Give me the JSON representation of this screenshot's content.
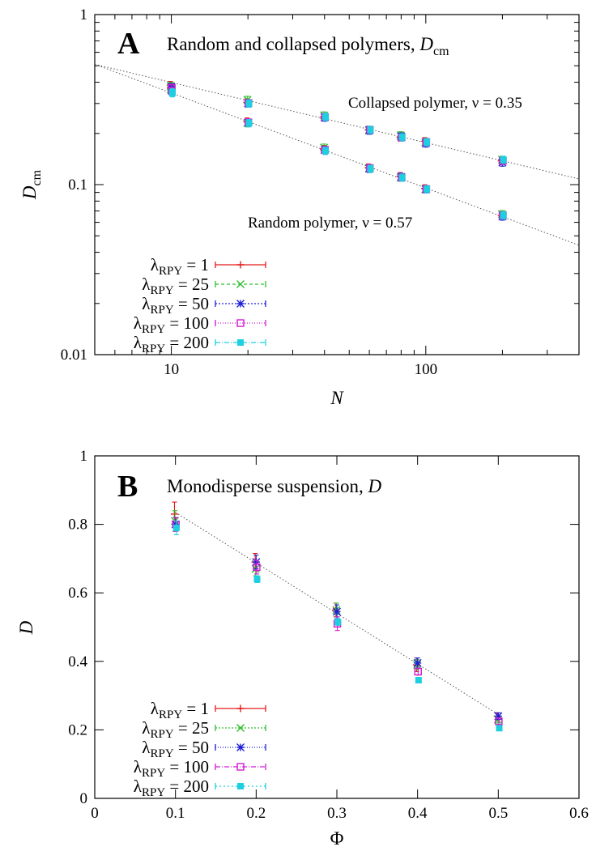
{
  "figure": {
    "panel_a": {
      "letter": "A",
      "title": "Random and collapsed polymers, ",
      "title_symbol": "D",
      "title_sub": "cm",
      "annotations": [
        {
          "text": "Collapsed polymer, ν = 0.35"
        },
        {
          "text": "Random polymer, ν = 0.57"
        }
      ]
    },
    "panel_b": {
      "letter": "B",
      "title": "Monodisperse suspension, ",
      "title_symbol": "D"
    }
  },
  "chart_data": [
    {
      "type": "scatter",
      "panel": "A",
      "title": "Random and collapsed polymers, Dcm",
      "xlabel": "N",
      "ylabel": "Dcm",
      "x_scale": "log",
      "y_scale": "log",
      "xlim": [
        5,
        400
      ],
      "ylim": [
        0.01,
        1
      ],
      "x_ticks": [
        {
          "v": 10,
          "label": "10"
        },
        {
          "v": 100,
          "label": "100"
        }
      ],
      "y_ticks": [
        {
          "v": 0.01,
          "label": "0.01"
        },
        {
          "v": 0.1,
          "label": "0.1"
        },
        {
          "v": 1,
          "label": "1"
        }
      ],
      "grid": false,
      "legend_position": "bottom-left",
      "fits": [
        {
          "name": "Collapsed polymer, ν = 0.35",
          "points": [
            [
              5,
              0.51
            ],
            [
              400,
              0.108
            ]
          ]
        },
        {
          "name": "Random polymer, ν = 0.57",
          "points": [
            [
              5,
              0.51
            ],
            [
              400,
              0.044
            ]
          ]
        }
      ],
      "series": [
        {
          "name": "λRPY = 1",
          "label_main": "λ",
          "label_sub": "RPY",
          "label_value": " = 1",
          "color": "#e41a1c",
          "marker": "plus",
          "dash": "",
          "x": [
            10,
            20,
            40,
            60,
            80,
            100,
            200,
            10,
            20,
            40,
            60,
            80,
            100,
            200
          ],
          "y": [
            0.385,
            0.305,
            0.25,
            0.21,
            0.19,
            0.18,
            0.138,
            0.37,
            0.235,
            0.162,
            0.126,
            0.112,
            0.095,
            0.066
          ]
        },
        {
          "name": "λRPY = 25",
          "label_main": "λ",
          "label_sub": "RPY",
          "label_value": " = 25",
          "color": "#2ec02e",
          "marker": "cross",
          "dash": "4 3",
          "x": [
            10,
            20,
            40,
            60,
            80,
            100,
            200,
            10,
            20,
            40,
            60,
            80,
            100,
            200
          ],
          "y": [
            0.38,
            0.315,
            0.255,
            0.21,
            0.195,
            0.178,
            0.14,
            0.365,
            0.23,
            0.165,
            0.125,
            0.11,
            0.094,
            0.067
          ]
        },
        {
          "name": "λRPY = 50",
          "label_main": "λ",
          "label_sub": "RPY",
          "label_value": " = 50",
          "color": "#1f1fd6",
          "marker": "star",
          "dash": "2 2",
          "x": [
            10,
            20,
            40,
            60,
            80,
            100,
            200,
            10,
            20,
            40,
            60,
            80,
            100,
            200
          ],
          "y": [
            0.375,
            0.3,
            0.248,
            0.208,
            0.192,
            0.175,
            0.135,
            0.36,
            0.232,
            0.16,
            0.124,
            0.111,
            0.094,
            0.065
          ]
        },
        {
          "name": "λRPY = 100",
          "label_main": "λ",
          "label_sub": "RPY",
          "label_value": " = 100",
          "color": "#d21ad2",
          "marker": "square",
          "dash": "1 2",
          "x": [
            10,
            20,
            40,
            60,
            80,
            100,
            200,
            10,
            20,
            40,
            60,
            80,
            100,
            200
          ],
          "y": [
            0.37,
            0.302,
            0.25,
            0.21,
            0.19,
            0.178,
            0.138,
            0.355,
            0.232,
            0.16,
            0.125,
            0.11,
            0.094,
            0.066
          ]
        },
        {
          "name": "λRPY = 200",
          "label_main": "λ",
          "label_sub": "RPY",
          "label_value": " = 200",
          "color": "#1ecfe0",
          "marker": "fsquare",
          "dash": "6 2 1 2",
          "x": [
            10,
            20,
            40,
            60,
            80,
            100,
            200,
            10,
            20,
            40,
            60,
            80,
            100,
            200
          ],
          "y": [
            0.35,
            0.3,
            0.25,
            0.21,
            0.19,
            0.178,
            0.14,
            0.345,
            0.23,
            0.158,
            0.124,
            0.11,
            0.094,
            0.066
          ]
        }
      ]
    },
    {
      "type": "scatter",
      "panel": "B",
      "title": "Monodisperse suspension, D",
      "xlabel": "Φ",
      "ylabel": "D",
      "x_scale": "linear",
      "y_scale": "linear",
      "xlim": [
        0,
        0.6
      ],
      "ylim": [
        0,
        1
      ],
      "x_ticks": [
        {
          "v": 0,
          "label": "0"
        },
        {
          "v": 0.1,
          "label": "0.1"
        },
        {
          "v": 0.2,
          "label": "0.2"
        },
        {
          "v": 0.3,
          "label": "0.3"
        },
        {
          "v": 0.4,
          "label": "0.4"
        },
        {
          "v": 0.5,
          "label": "0.5"
        },
        {
          "v": 0.6,
          "label": "0.6"
        }
      ],
      "y_ticks": [
        {
          "v": 0,
          "label": "0"
        },
        {
          "v": 0.2,
          "label": "0.2"
        },
        {
          "v": 0.4,
          "label": "0.4"
        },
        {
          "v": 0.6,
          "label": "0.6"
        },
        {
          "v": 0.8,
          "label": "0.8"
        },
        {
          "v": 1,
          "label": "1"
        }
      ],
      "grid": false,
      "legend_position": "bottom-left",
      "fits": [
        {
          "name": "linear fit",
          "points": [
            [
              0.1,
              0.835
            ],
            [
              0.5,
              0.245
            ]
          ]
        }
      ],
      "series": [
        {
          "name": "λRPY = 1",
          "label_main": "λ",
          "label_sub": "RPY",
          "label_value": " = 1",
          "color": "#e41a1c",
          "marker": "plus",
          "dash": "",
          "x": [
            0.1,
            0.2,
            0.3,
            0.4,
            0.5
          ],
          "y": [
            0.83,
            0.69,
            0.55,
            0.39,
            0.24
          ],
          "err": [
            0.035,
            0.025,
            0.02,
            0.02,
            0.01
          ]
        },
        {
          "name": "λRPY = 25",
          "label_main": "λ",
          "label_sub": "RPY",
          "label_value": " = 25",
          "color": "#2ec02e",
          "marker": "cross",
          "dash": "2 2",
          "x": [
            0.1,
            0.2,
            0.3,
            0.4,
            0.5
          ],
          "y": [
            0.81,
            0.67,
            0.55,
            0.39,
            0.23
          ],
          "err": [
            0.03,
            0.02,
            0.02,
            0.015,
            0.01
          ]
        },
        {
          "name": "λRPY = 50",
          "label_main": "λ",
          "label_sub": "RPY",
          "label_value": " = 50",
          "color": "#1f1fd6",
          "marker": "star",
          "dash": "1 2",
          "x": [
            0.1,
            0.2,
            0.3,
            0.4,
            0.5
          ],
          "y": [
            0.8,
            0.69,
            0.545,
            0.395,
            0.24
          ],
          "err": [
            0.02,
            0.02,
            0.02,
            0.015,
            0.01
          ]
        },
        {
          "name": "λRPY = 100",
          "label_main": "λ",
          "label_sub": "RPY",
          "label_value": " = 100",
          "color": "#d21ad2",
          "marker": "square",
          "dash": "6 2 1 2",
          "x": [
            0.1,
            0.2,
            0.3,
            0.4,
            0.5
          ],
          "y": [
            0.8,
            0.675,
            0.51,
            0.37,
            0.225
          ],
          "err": [
            0.02,
            0.02,
            0.02,
            0.01,
            0.01
          ]
        },
        {
          "name": "λRPY = 200",
          "label_main": "λ",
          "label_sub": "RPY",
          "label_value": " = 200",
          "color": "#1ecfe0",
          "marker": "fsquare",
          "dash": "2 3",
          "x": [
            0.1,
            0.2,
            0.3,
            0.4,
            0.5
          ],
          "y": [
            0.79,
            0.64,
            0.515,
            0.345,
            0.205
          ],
          "err": [
            0.02,
            0.01,
            0.01,
            0.005,
            0.005
          ]
        }
      ]
    }
  ]
}
